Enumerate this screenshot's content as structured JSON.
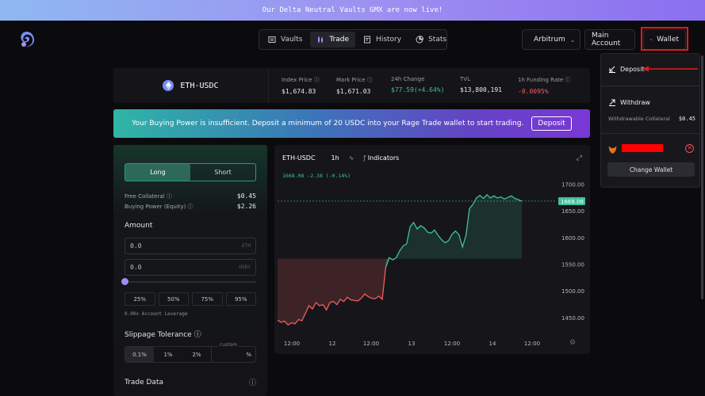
{
  "banner": {
    "text": "Our Delta Neutral Vaults GMX are now live!"
  },
  "nav": {
    "items": [
      {
        "label": "Vaults",
        "icon": "vault-icon"
      },
      {
        "label": "Trade",
        "icon": "candlestick-icon",
        "active": true
      },
      {
        "label": "History",
        "icon": "history-icon"
      },
      {
        "label": "Stats",
        "icon": "stats-icon"
      }
    ]
  },
  "header": {
    "network_label": "Arbitrum",
    "main_account_label": "Main Account",
    "wallet_label": "Wallet"
  },
  "ticker": {
    "pair": "ETH-USDC",
    "stats": [
      {
        "label": "Index Price",
        "value": "$1,674.83",
        "info": true
      },
      {
        "label": "Mark Price",
        "value": "$1,671.03",
        "info": true
      },
      {
        "label": "24h Change",
        "value": "$77.59(+4.64%)",
        "info": false,
        "tone": "green"
      },
      {
        "label": "TVL",
        "value": "$13,800,191",
        "info": false
      },
      {
        "label": "1h Funding Rate",
        "value": "-0.0095%",
        "info": true,
        "tone": "red"
      }
    ]
  },
  "alert": {
    "message": "Your Buying Power is insufficient. Deposit a minimum of 20 USDC into your Rage Trade wallet to start trading.",
    "button_label": "Deposit"
  },
  "trade": {
    "long_label": "Long",
    "short_label": "Short",
    "free_collateral_label": "Free Collateral",
    "free_collateral_value": "$0.45",
    "buying_power_label": "Buying Power (Equity)",
    "buying_power_value": "$2.26",
    "amount_label": "Amount",
    "amount_eth_value": "0.0",
    "amount_eth_unit": "ETH",
    "amount_usdc_value": "0.0",
    "amount_usdc_unit": "USDC",
    "slider_fraction": 0,
    "percent_options": [
      "25%",
      "50%",
      "75%",
      "95%"
    ],
    "leverage_text": "0.00x Account Leverage",
    "slippage_label": "Slippage Tolerance",
    "slippage_options": [
      "0.1%",
      "1%",
      "2%"
    ],
    "custom_label": "custom",
    "custom_unit": "%",
    "trade_data_label": "Trade Data"
  },
  "chart": {
    "pair": "ETH-USDC",
    "interval": "1h",
    "indicators_label": "Indicators",
    "readout": "1668.08 -2.38 (-0.14%)",
    "current_price_label": "1668.08"
  },
  "chart_data": {
    "type": "area",
    "title": "",
    "xlabel": "",
    "ylabel": "",
    "x_ticks": [
      "12:00",
      "12",
      "12:00",
      "13",
      "12:00",
      "14",
      "12:00"
    ],
    "y_ticks": [
      "1700.00",
      "1650.00",
      "1600.00",
      "1550.00",
      "1500.00",
      "1450.00"
    ],
    "ylim": [
      1420,
      1720
    ],
    "baseline": 1560,
    "current_price": 1668.08,
    "values": [
      1445,
      1441,
      1443,
      1436,
      1440,
      1438,
      1446,
      1444,
      1458,
      1472,
      1466,
      1478,
      1472,
      1474,
      1464,
      1478,
      1480,
      1474,
      1484,
      1480,
      1488,
      1483,
      1482,
      1481,
      1486,
      1494,
      1489,
      1486,
      1485,
      1490,
      1484,
      1544,
      1562,
      1558,
      1562,
      1575,
      1584,
      1588,
      1620,
      1628,
      1616,
      1622,
      1618,
      1610,
      1608,
      1614,
      1604,
      1596,
      1590,
      1594,
      1606,
      1612,
      1605,
      1582,
      1604,
      1654,
      1662,
      1674,
      1679,
      1673,
      1680,
      1674,
      1678,
      1674,
      1676,
      1672,
      1675,
      1678,
      1673,
      1671,
      1668
    ],
    "colors": {
      "up": "#3fbf9b",
      "down": "#ee5d5d"
    }
  },
  "sidepanel": {
    "deposit_label": "Deposit",
    "withdraw_label": "Withdraw",
    "withdrawable_label": "Withdrawable Collateral",
    "withdrawable_value": "$0.45",
    "change_wallet_label": "Change Wallet"
  }
}
